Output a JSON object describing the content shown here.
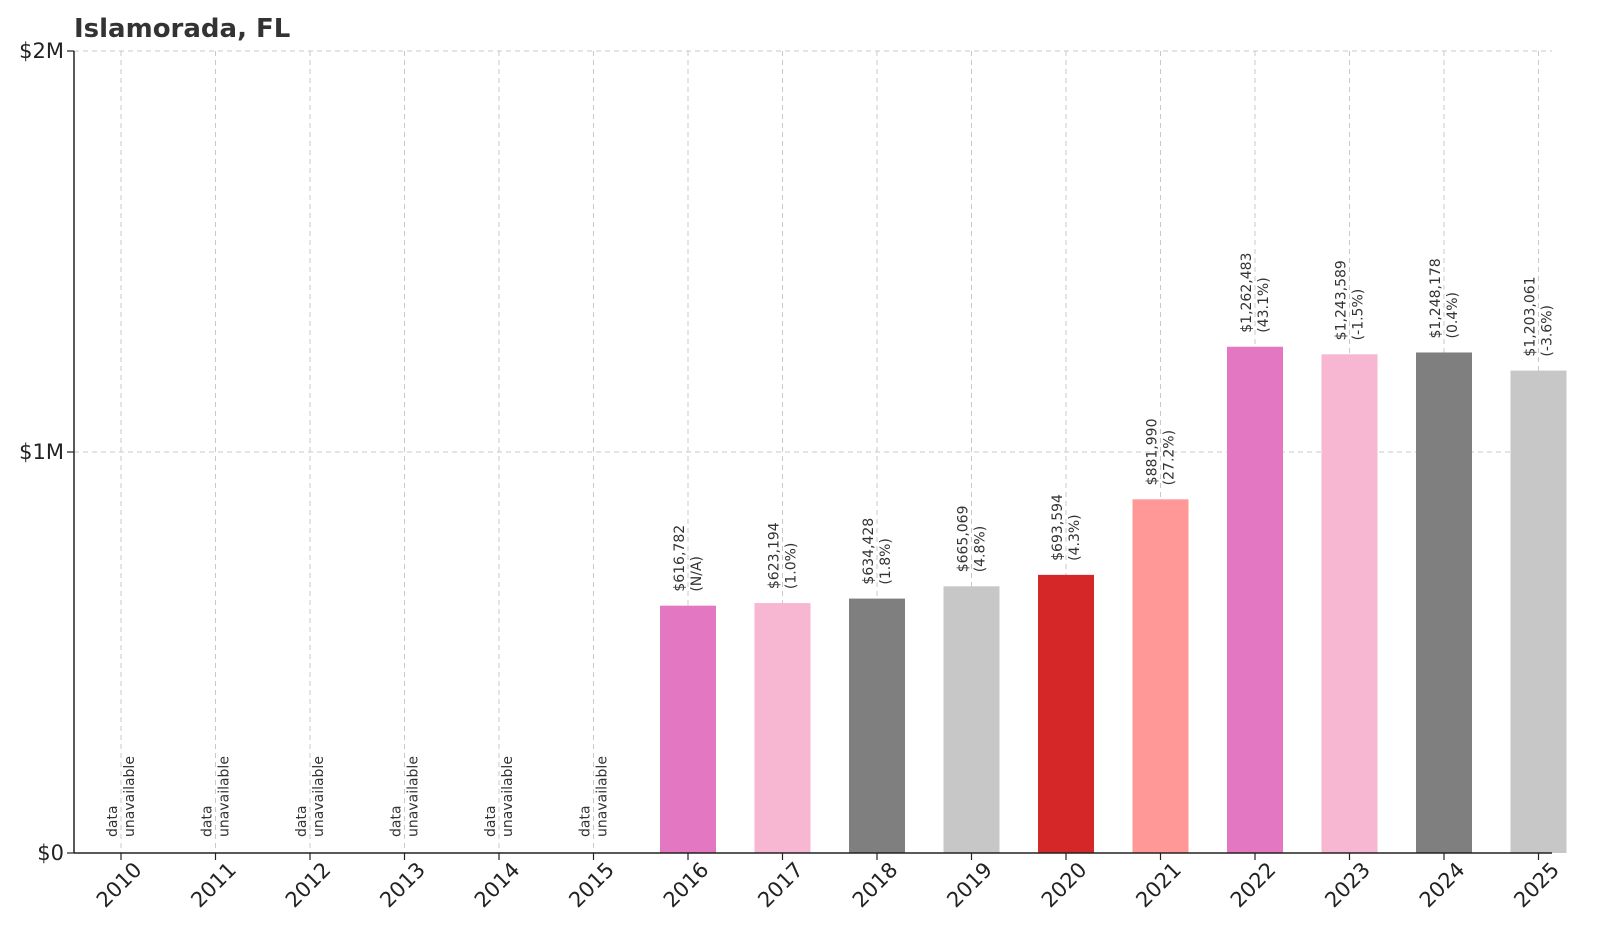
{
  "chart_data": {
    "type": "bar",
    "title": "Islamorada, FL",
    "xlabel": "",
    "ylabel": "",
    "ylim": [
      0,
      2000000
    ],
    "y_ticks": [
      {
        "value": 0,
        "label": "$0"
      },
      {
        "value": 1000000,
        "label": "$1M"
      },
      {
        "value": 2000000,
        "label": "$2M"
      }
    ],
    "grid": true,
    "categories": [
      "2010",
      "2011",
      "2012",
      "2013",
      "2014",
      "2015",
      "2016",
      "2017",
      "2018",
      "2019",
      "2020",
      "2021",
      "2022",
      "2023",
      "2024",
      "2025"
    ],
    "values": [
      null,
      null,
      null,
      null,
      null,
      null,
      616782,
      623194,
      634428,
      665069,
      693594,
      881990,
      1262483,
      1243589,
      1248178,
      1203061
    ],
    "value_labels": [
      "data",
      "data",
      "data",
      "data",
      "data",
      "data",
      "$616,782",
      "$623,194",
      "$634,428",
      "$665,069",
      "$693,594",
      "$881,990",
      "$1,262,483",
      "$1,243,589",
      "$1,248,178",
      "$1,203,061"
    ],
    "change_labels": [
      "unavailable",
      "unavailable",
      "unavailable",
      "unavailable",
      "unavailable",
      "unavailable",
      "(N/A)",
      "(1.0%)",
      "(1.8%)",
      "(4.8%)",
      "(4.3%)",
      "(27.2%)",
      "(43.1%)",
      "(-1.5%)",
      "(0.4%)",
      "(-3.6%)"
    ],
    "colors": [
      "#d62728",
      "#ff9896",
      "#9467bd",
      "#c5b0d5",
      "#8c564b",
      "#c49c94",
      "#e377c2",
      "#f7b6d2",
      "#7f7f7f",
      "#c7c7c7",
      "#d62728",
      "#ff9896",
      "#e377c2",
      "#f7b6d2",
      "#7f7f7f",
      "#c7c7c7"
    ]
  }
}
